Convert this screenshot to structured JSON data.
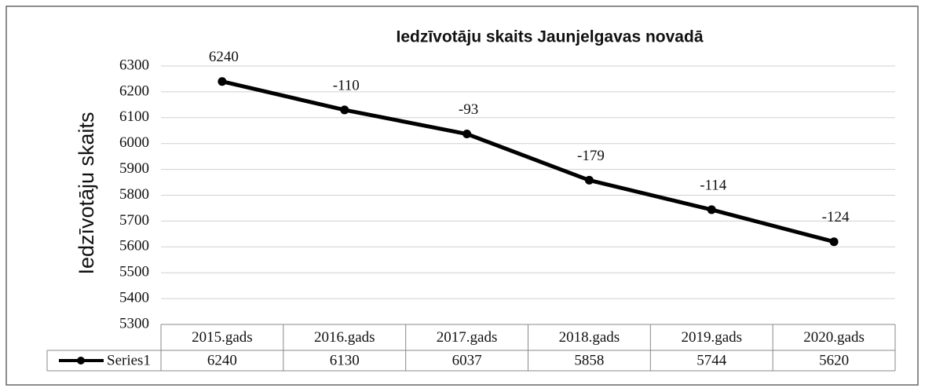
{
  "chart_data": {
    "type": "line",
    "title": "Iedzīvotāju skaits Jaunjelgavas novadā",
    "ylabel": "Iedzīvotāju skaits",
    "categories": [
      "2015.gads",
      "2016.gads",
      "2017.gads",
      "2018.gads",
      "2019.gads",
      "2020.gads"
    ],
    "series": [
      {
        "name": "Series1",
        "color": "#000000",
        "values": [
          6240,
          6130,
          6037,
          5858,
          5744,
          5620
        ]
      }
    ],
    "annotations": [
      "6240",
      "-110",
      "-93",
      "-179",
      "-114",
      "-124"
    ],
    "ylim": [
      5300,
      6300
    ],
    "yticks": [
      5300,
      5400,
      5500,
      5600,
      5700,
      5800,
      5900,
      6000,
      6100,
      6200,
      6300
    ],
    "grid": true
  }
}
